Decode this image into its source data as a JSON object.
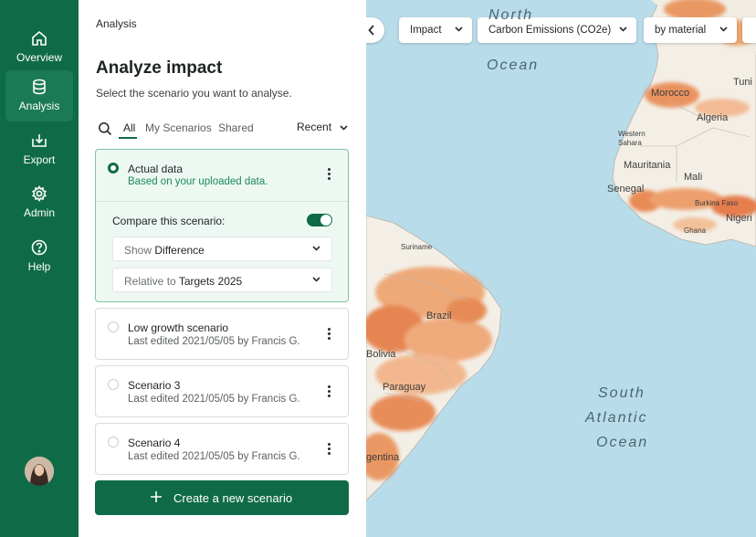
{
  "nav": {
    "items": [
      {
        "label": "Overview",
        "icon": "home-icon"
      },
      {
        "label": "Analysis",
        "icon": "database-icon",
        "active": true
      },
      {
        "label": "Export",
        "icon": "export-icon"
      },
      {
        "label": "Admin",
        "icon": "gear-icon"
      },
      {
        "label": "Help",
        "icon": "help-icon"
      }
    ],
    "avatar": "user-avatar"
  },
  "panel": {
    "breadcrumb": "Analysis",
    "title": "Analyze impact",
    "subtitle": "Select the scenario you want to analyse.",
    "tabs": [
      "All",
      "My Scenarios",
      "Shared"
    ],
    "active_tab": "All",
    "sort_label": "Recent",
    "scenarios": [
      {
        "title": "Actual data",
        "subtitle": "Based on your uploaded data.",
        "selected": true,
        "compare": {
          "label": "Compare this scenario:",
          "enabled": true,
          "mode_prefix": "Show",
          "mode_value": "Difference",
          "relative_prefix": "Relative to",
          "relative_value": "Targets 2025"
        }
      },
      {
        "title": "Low growth scenario",
        "subtitle": "Last edited 2021/05/05 by Francis G.",
        "selected": false
      },
      {
        "title": "Scenario 3",
        "subtitle": "Last edited 2021/05/05 by Francis G.",
        "selected": false
      },
      {
        "title": "Scenario 4",
        "subtitle": "Last edited 2021/05/05 by Francis G.",
        "selected": false
      }
    ],
    "create_button": "Create a new scenario"
  },
  "map": {
    "filters": [
      "Impact",
      "Carbon Emissions (CO2e)",
      "by material"
    ],
    "ocean_labels": {
      "north_atlantic": [
        "North",
        "Ocean"
      ],
      "south_atlantic": [
        "South",
        "Atlantic",
        "Ocean"
      ]
    },
    "place_labels": [
      "Tuni",
      "Morocco",
      "Algeria",
      "Western Sahara",
      "Mauritania",
      "Mali",
      "Senegal",
      "Burkina Faso",
      "Nigeri",
      "Ghana",
      "Suriname",
      "Brazil",
      "Bolivia",
      "Paraguay",
      "gentina"
    ],
    "colors": {
      "ocean": "#b9dcea",
      "land": "#f3efe6",
      "impact_low": "#f6c9a0",
      "impact_high": "#e36b33"
    }
  },
  "colors": {
    "brand": "#0f6b47",
    "selected_bg": "#eef8f3",
    "accent_text": "#1a8a5c"
  }
}
